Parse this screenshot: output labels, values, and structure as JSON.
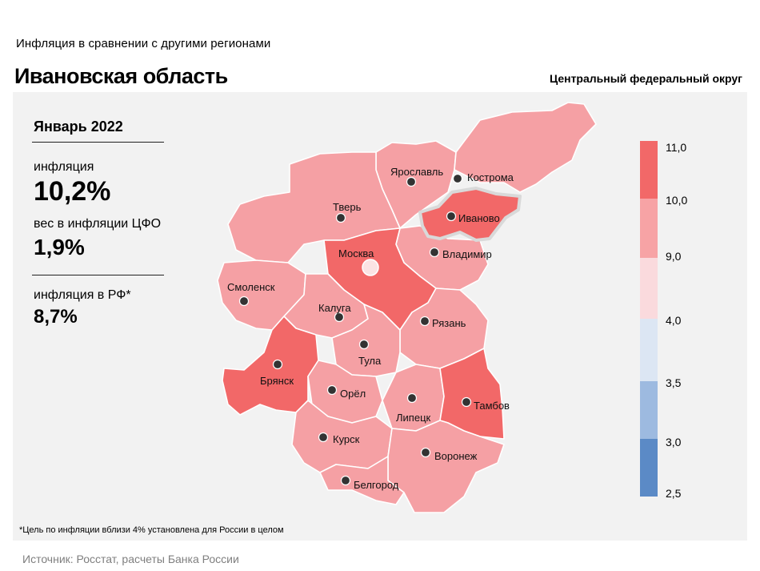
{
  "header": {
    "subtitle": "Инфляция  в сравнении  с другими  регионами",
    "title": "Ивановская область",
    "district": "Центральный федеральный округ"
  },
  "stats": {
    "period": "Январь 2022",
    "inflation_label": "инфляция",
    "inflation_value": "10,2%",
    "weight_label": "вес в инфляции  ЦФО",
    "weight_value": "1,9%",
    "rf_label": "инфляция  в РФ*",
    "rf_value": "8,7%"
  },
  "footnote": "*Цель по инфляции вблизи 4% установлена для России в целом",
  "source": "Источник: Росстат, расчеты Банка России",
  "legend": {
    "ticks": [
      "11,0",
      "10,0",
      "9,0",
      "4,0",
      "3,5",
      "3,0",
      "2,5"
    ],
    "colors": [
      "#f26868",
      "#f7a3a5",
      "#fadadd",
      "#dce6f3",
      "#9dbae0",
      "#5b8ac6"
    ]
  },
  "map": {
    "highlight_region": "Иваново",
    "regions": [
      {
        "name": "Ярославль",
        "band": "9-10",
        "color": "#f5a0a4"
      },
      {
        "name": "Кострома",
        "band": "9-10",
        "color": "#f5a0a4"
      },
      {
        "name": "Иваново",
        "band": "10-11",
        "color": "#f26868"
      },
      {
        "name": "Тверь",
        "band": "9-10",
        "color": "#f5a0a4"
      },
      {
        "name": "Москва",
        "band": "10-11",
        "color": "#f26868"
      },
      {
        "name": "Владимир",
        "band": "9-10",
        "color": "#f5a0a4"
      },
      {
        "name": "Смоленск",
        "band": "9-10",
        "color": "#f5a0a4"
      },
      {
        "name": "Калуга",
        "band": "9-10",
        "color": "#f5a0a4"
      },
      {
        "name": "Рязань",
        "band": "9-10",
        "color": "#f5a0a4"
      },
      {
        "name": "Тула",
        "band": "9-10",
        "color": "#f5a0a4"
      },
      {
        "name": "Брянск",
        "band": "10-11",
        "color": "#f26868"
      },
      {
        "name": "Орёл",
        "band": "9-10",
        "color": "#f5a0a4"
      },
      {
        "name": "Липецк",
        "band": "9-10",
        "color": "#f5a0a4"
      },
      {
        "name": "Тамбов",
        "band": "10-11",
        "color": "#f26868"
      },
      {
        "name": "Курск",
        "band": "9-10",
        "color": "#f5a0a4"
      },
      {
        "name": "Воронеж",
        "band": "9-10",
        "color": "#f5a0a4"
      },
      {
        "name": "Белгород",
        "band": "9-10",
        "color": "#f5a0a4"
      }
    ]
  }
}
